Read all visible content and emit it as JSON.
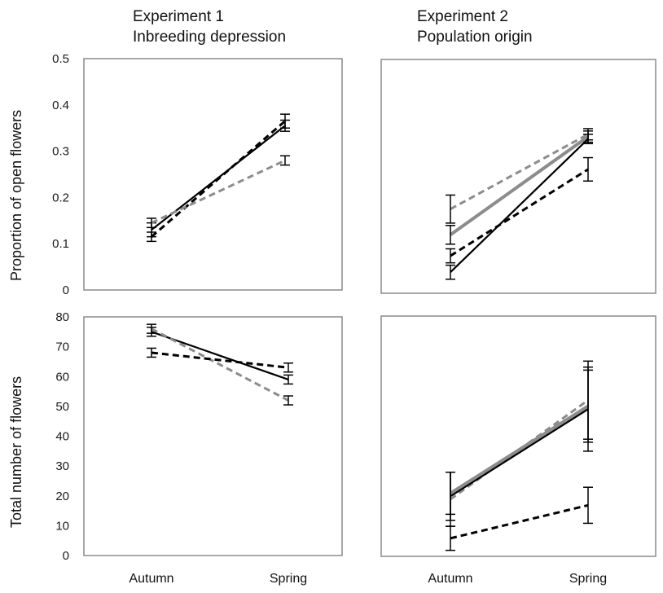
{
  "titles": {
    "left_line1": "Experiment 1",
    "left_line2": "Inbreeding depression",
    "right_line1": "Experiment 2",
    "right_line2": "Population origin"
  },
  "axes": {
    "top_ylabel": "Proportion of open flowers",
    "bottom_ylabel": "Total number of flowers",
    "top_yticks": [
      "0.5",
      "0.4",
      "0.3",
      "0.2",
      "0.1",
      "0"
    ],
    "bottom_yticks": [
      "80",
      "70",
      "60",
      "50",
      "40",
      "30",
      "20",
      "10",
      "0"
    ],
    "categories": [
      "Autumn",
      "Spring"
    ]
  },
  "colors": {
    "black": "#000000",
    "gray": "#8c8c8c",
    "frame": "#8a8a8a"
  },
  "chart_data": [
    {
      "type": "line",
      "title": "Experiment 1 Inbreeding depression",
      "xlabel": "",
      "ylabel": "Proportion of open flowers",
      "categories": [
        "Autumn",
        "Spring"
      ],
      "ylim": [
        0,
        0.5
      ],
      "grid": false,
      "series": [
        {
          "name": "black solid",
          "style": "solid",
          "color": "#000000",
          "values": [
            0.13,
            0.355
          ],
          "err": [
            0.015,
            0.012
          ]
        },
        {
          "name": "black dashed",
          "style": "dashed",
          "color": "#000000",
          "values": [
            0.115,
            0.365
          ],
          "err": [
            0.01,
            0.015
          ]
        },
        {
          "name": "gray dashed",
          "style": "dashed",
          "color": "#8c8c8c",
          "values": [
            0.145,
            0.28
          ],
          "err": [
            0.01,
            0.01
          ]
        }
      ]
    },
    {
      "type": "line",
      "title": "Experiment 2 Population origin",
      "xlabel": "",
      "ylabel": "Proportion of open flowers",
      "categories": [
        "Autumn",
        "Spring"
      ],
      "ylim": [
        0,
        0.5
      ],
      "grid": false,
      "series": [
        {
          "name": "gray dashed",
          "style": "dashed",
          "color": "#8c8c8c",
          "values": [
            0.18,
            0.34
          ],
          "err": [
            0.03,
            0.012
          ]
        },
        {
          "name": "gray solid",
          "style": "solid-thick",
          "color": "#8c8c8c",
          "values": [
            0.125,
            0.335
          ],
          "err": [
            0.02,
            0.012
          ]
        },
        {
          "name": "black dashed",
          "style": "dashed",
          "color": "#000000",
          "values": [
            0.08,
            0.265
          ],
          "err": [
            0.015,
            0.025
          ]
        },
        {
          "name": "black solid",
          "style": "solid",
          "color": "#000000",
          "values": [
            0.045,
            0.33
          ],
          "err": [
            0.015,
            0.01
          ]
        }
      ]
    },
    {
      "type": "line",
      "title": "Experiment 1 Inbreeding depression",
      "xlabel": "",
      "ylabel": "Total number of flowers",
      "categories": [
        "Autumn",
        "Spring"
      ],
      "ylim": [
        0,
        80
      ],
      "grid": false,
      "series": [
        {
          "name": "black solid",
          "style": "solid",
          "color": "#000000",
          "values": [
            75,
            59
          ],
          "err": [
            1.5,
            1.5
          ]
        },
        {
          "name": "gray dashed",
          "style": "dashed",
          "color": "#8c8c8c",
          "values": [
            76,
            52
          ],
          "err": [
            1.5,
            1.5
          ]
        },
        {
          "name": "black dashed",
          "style": "dashed",
          "color": "#000000",
          "values": [
            68,
            63
          ],
          "err": [
            1.5,
            1.5
          ]
        }
      ]
    },
    {
      "type": "line",
      "title": "Experiment 2 Population origin",
      "xlabel": "",
      "ylabel": "Total number of flowers",
      "categories": [
        "Autumn",
        "Spring"
      ],
      "ylim": [
        0,
        80
      ],
      "grid": false,
      "series": [
        {
          "name": "gray dashed",
          "style": "dashed",
          "color": "#8c8c8c",
          "values": [
            19,
            52
          ],
          "err": [
            9,
            13
          ]
        },
        {
          "name": "gray solid",
          "style": "solid-thick",
          "color": "#8c8c8c",
          "values": [
            21,
            50
          ],
          "err": [
            7,
            12
          ]
        },
        {
          "name": "black solid",
          "style": "solid",
          "color": "#000000",
          "values": [
            20,
            49
          ],
          "err": [
            8,
            14
          ]
        },
        {
          "name": "black dashed",
          "style": "dashed",
          "color": "#000000",
          "values": [
            6,
            17
          ],
          "err": [
            4,
            6
          ]
        }
      ]
    }
  ]
}
